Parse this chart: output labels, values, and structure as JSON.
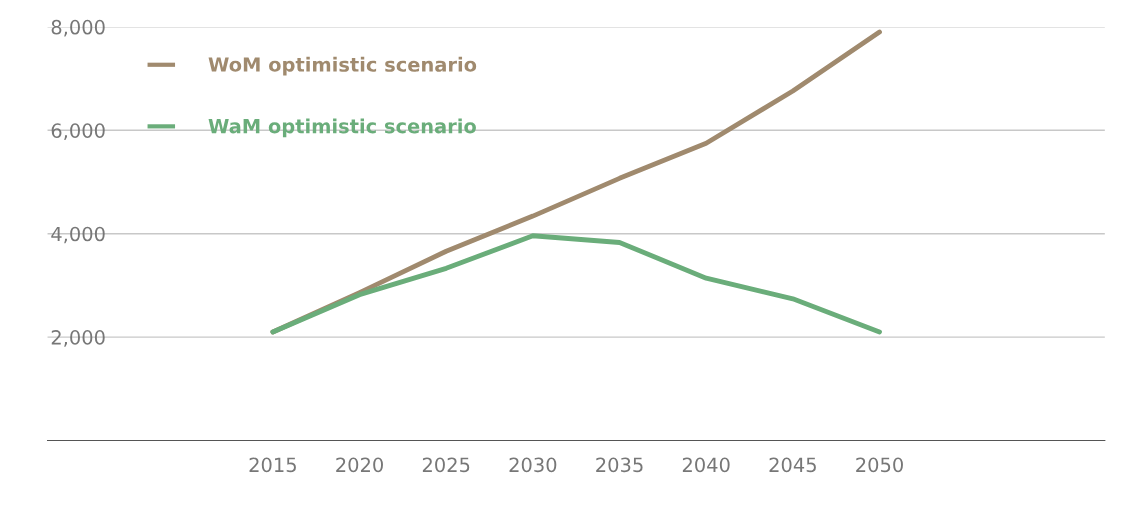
{
  "chart_data": {
    "type": "line",
    "x": [
      2015,
      2020,
      2025,
      2030,
      2035,
      2040,
      2045,
      2050
    ],
    "xlim": [
      2002,
      2063
    ],
    "xticks": [
      2015,
      2020,
      2025,
      2030,
      2035,
      2040,
      2045,
      2050
    ],
    "ylim": [
      0,
      8000
    ],
    "yticks": [
      {
        "value": 2000,
        "label": "2,000"
      },
      {
        "value": 4000,
        "label": "4,000"
      },
      {
        "value": 6000,
        "label": "6,000"
      },
      {
        "value": 8000,
        "label": "8,000"
      }
    ],
    "grid": "y",
    "legend": "top left",
    "line_style": "solid",
    "marker": "none",
    "series": [
      {
        "name": "WoM optimistic scenario",
        "color": "#a08a6e",
        "values": [
          2100,
          2860,
          3660,
          4340,
          5070,
          5750,
          6760,
          7900
        ]
      },
      {
        "name": "WaM optimistic scenario",
        "color": "#6aad7a",
        "values": [
          2100,
          2820,
          3330,
          3960,
          3830,
          3140,
          2740,
          2100
        ]
      }
    ]
  }
}
